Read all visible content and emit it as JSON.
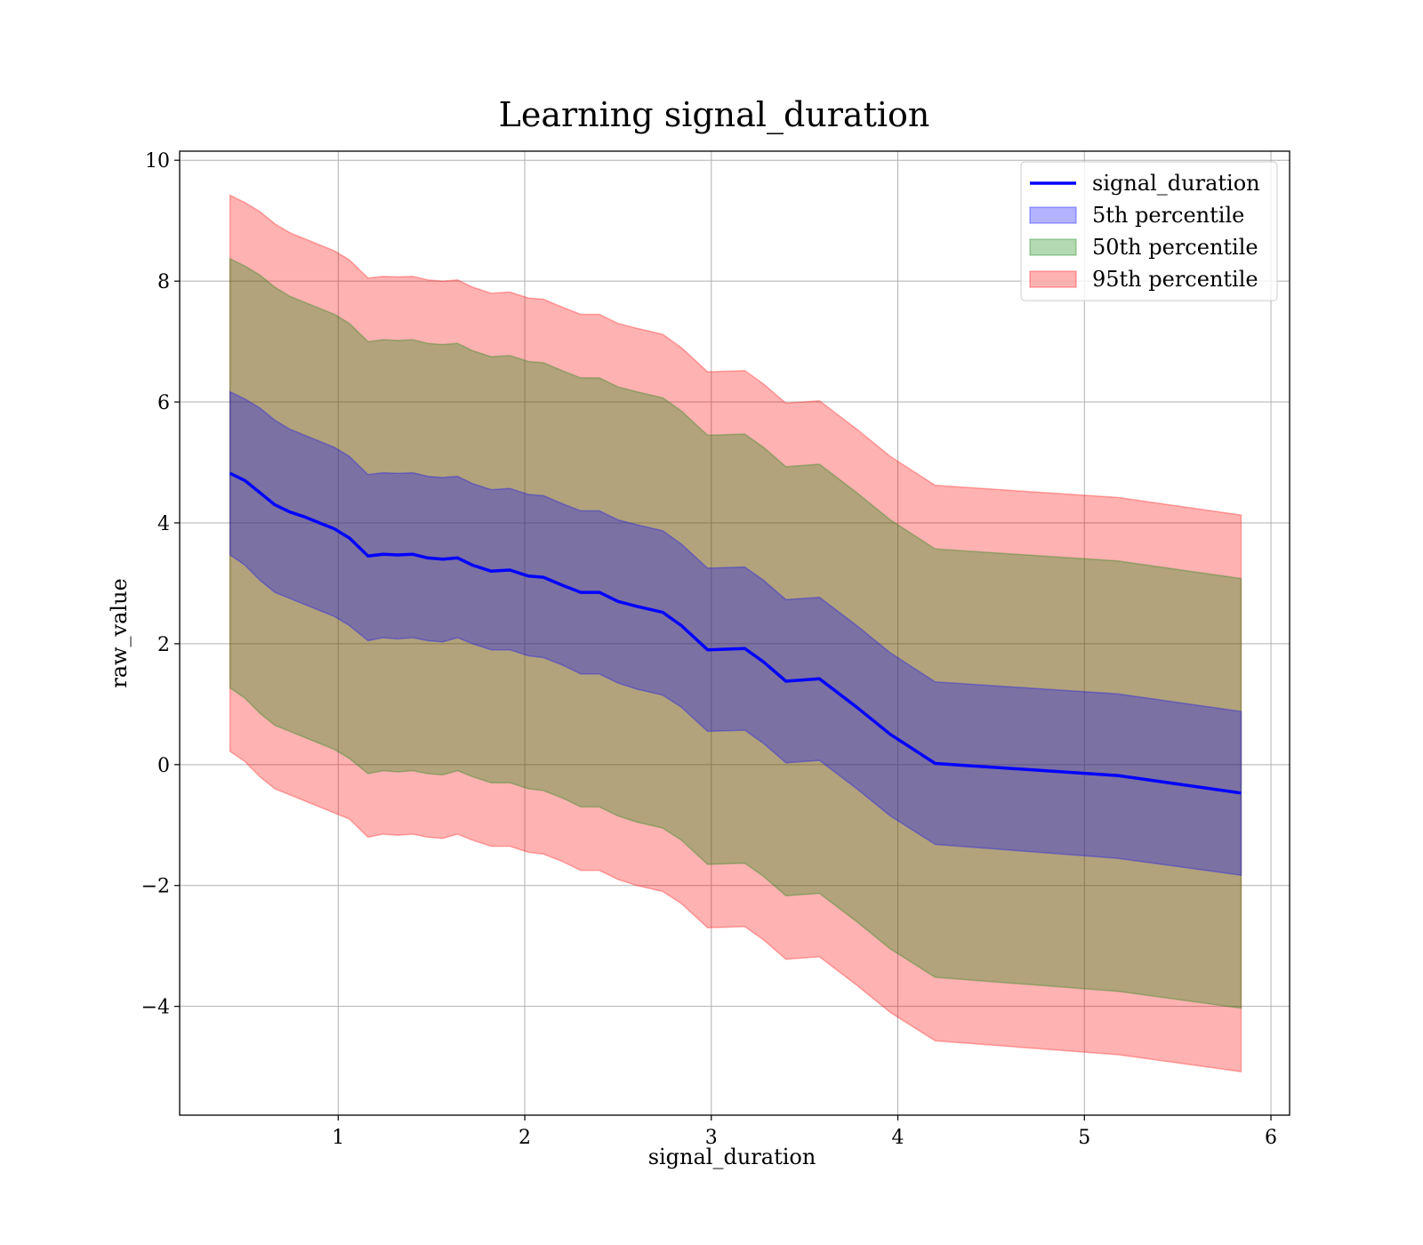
{
  "chart_data": {
    "type": "area",
    "title": "Learning signal_duration",
    "xlabel": "signal_duration",
    "ylabel": "raw_value",
    "xlim": [
      0.15,
      6.1
    ],
    "ylim": [
      -5.8,
      10.15
    ],
    "xticks": [
      1,
      2,
      3,
      4,
      5,
      6
    ],
    "yticks": [
      -4,
      -2,
      0,
      2,
      4,
      6,
      8,
      10
    ],
    "xtick_labels": [
      "1",
      "2",
      "3",
      "4",
      "5",
      "6"
    ],
    "ytick_labels": [
      "−4",
      "−2",
      "0",
      "2",
      "4",
      "6",
      "8",
      "10"
    ],
    "grid": true,
    "legend_position": "top-right",
    "legend": [
      {
        "label": "signal_duration",
        "kind": "line",
        "color": "#0000ff"
      },
      {
        "label": "5th percentile",
        "kind": "patch",
        "color": "#0000ff"
      },
      {
        "label": "50th percentile",
        "kind": "patch",
        "color": "#008000"
      },
      {
        "label": "95th percentile",
        "kind": "patch",
        "color": "#ff0000"
      }
    ],
    "x": [
      0.42,
      0.5,
      0.58,
      0.66,
      0.74,
      0.82,
      0.9,
      0.98,
      1.06,
      1.16,
      1.24,
      1.32,
      1.4,
      1.48,
      1.56,
      1.64,
      1.72,
      1.82,
      1.92,
      2.02,
      2.1,
      2.2,
      2.3,
      2.4,
      2.5,
      2.6,
      2.74,
      2.84,
      2.98,
      3.18,
      3.28,
      3.4,
      3.58,
      3.78,
      3.96,
      4.2,
      5.18,
      5.84
    ],
    "series": [
      {
        "name": "signal_duration",
        "color": "#0000ff",
        "values": [
          4.82,
          4.7,
          4.5,
          4.3,
          4.18,
          4.1,
          4.0,
          3.9,
          3.75,
          3.45,
          3.48,
          3.47,
          3.48,
          3.42,
          3.4,
          3.42,
          3.3,
          3.2,
          3.22,
          3.12,
          3.1,
          2.97,
          2.85,
          2.85,
          2.7,
          2.62,
          2.52,
          2.3,
          1.9,
          1.92,
          1.7,
          1.38,
          1.42,
          0.95,
          0.5,
          0.02,
          -0.18,
          -0.47
        ]
      }
    ],
    "bands": [
      {
        "name": "95th percentile",
        "color": "#ff0000",
        "lower": [
          0.22,
          0.05,
          -0.2,
          -0.4,
          -0.5,
          -0.6,
          -0.7,
          -0.8,
          -0.9,
          -1.2,
          -1.15,
          -1.17,
          -1.15,
          -1.2,
          -1.22,
          -1.15,
          -1.25,
          -1.35,
          -1.35,
          -1.45,
          -1.48,
          -1.6,
          -1.75,
          -1.75,
          -1.9,
          -2.0,
          -2.1,
          -2.3,
          -2.7,
          -2.68,
          -2.9,
          -3.22,
          -3.18,
          -3.65,
          -4.1,
          -4.57,
          -4.8,
          -5.08
        ],
        "upper": [
          9.42,
          9.3,
          9.15,
          8.95,
          8.8,
          8.7,
          8.6,
          8.5,
          8.35,
          8.05,
          8.08,
          8.07,
          8.08,
          8.02,
          8.0,
          8.02,
          7.9,
          7.8,
          7.82,
          7.72,
          7.7,
          7.57,
          7.45,
          7.45,
          7.3,
          7.22,
          7.12,
          6.9,
          6.5,
          6.52,
          6.3,
          5.98,
          6.02,
          5.55,
          5.1,
          4.62,
          4.42,
          4.13
        ]
      },
      {
        "name": "50th percentile",
        "color": "#008000",
        "lower": [
          1.27,
          1.1,
          0.85,
          0.65,
          0.55,
          0.45,
          0.35,
          0.25,
          0.1,
          -0.15,
          -0.1,
          -0.12,
          -0.1,
          -0.15,
          -0.17,
          -0.1,
          -0.2,
          -0.3,
          -0.3,
          -0.4,
          -0.43,
          -0.55,
          -0.7,
          -0.7,
          -0.85,
          -0.95,
          -1.05,
          -1.25,
          -1.65,
          -1.63,
          -1.85,
          -2.17,
          -2.13,
          -2.6,
          -3.05,
          -3.52,
          -3.75,
          -4.03
        ],
        "upper": [
          8.37,
          8.25,
          8.1,
          7.9,
          7.75,
          7.65,
          7.55,
          7.45,
          7.3,
          7.0,
          7.03,
          7.02,
          7.03,
          6.97,
          6.95,
          6.97,
          6.85,
          6.75,
          6.77,
          6.67,
          6.65,
          6.52,
          6.4,
          6.4,
          6.25,
          6.17,
          6.07,
          5.85,
          5.45,
          5.47,
          5.25,
          4.93,
          4.97,
          4.5,
          4.05,
          3.57,
          3.37,
          3.08
        ]
      },
      {
        "name": "5th percentile",
        "color": "#0000ff",
        "lower": [
          3.47,
          3.3,
          3.05,
          2.85,
          2.75,
          2.65,
          2.55,
          2.45,
          2.3,
          2.05,
          2.1,
          2.08,
          2.1,
          2.05,
          2.03,
          2.1,
          2.0,
          1.9,
          1.9,
          1.8,
          1.77,
          1.65,
          1.5,
          1.5,
          1.35,
          1.25,
          1.15,
          0.95,
          0.55,
          0.57,
          0.35,
          0.03,
          0.07,
          -0.4,
          -0.85,
          -1.32,
          -1.55,
          -1.83
        ],
        "upper": [
          6.17,
          6.05,
          5.9,
          5.7,
          5.55,
          5.45,
          5.35,
          5.25,
          5.1,
          4.8,
          4.83,
          4.82,
          4.83,
          4.77,
          4.75,
          4.77,
          4.65,
          4.55,
          4.57,
          4.47,
          4.45,
          4.32,
          4.2,
          4.2,
          4.05,
          3.97,
          3.87,
          3.65,
          3.25,
          3.27,
          3.05,
          2.73,
          2.77,
          2.3,
          1.85,
          1.37,
          1.17,
          0.88
        ]
      }
    ]
  }
}
